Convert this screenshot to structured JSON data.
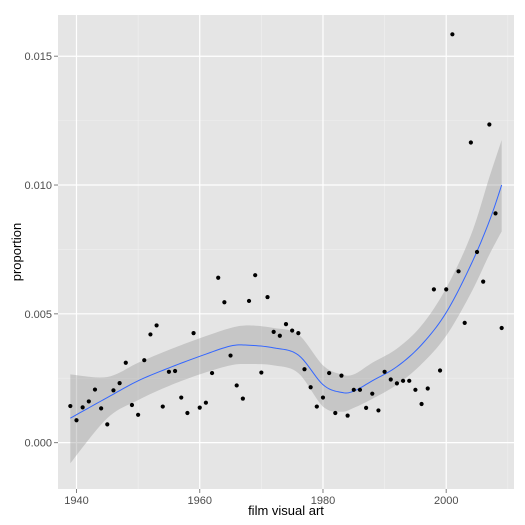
{
  "colors": {
    "panel_bg": "#E5E5E5",
    "grid_major": "#FFFFFF",
    "grid_minor": "#F0F0F0",
    "points": "#000000",
    "smooth_line": "#3366FF",
    "ribbon": "#999999",
    "tick_mark": "#7F7F7F"
  },
  "chart_data": {
    "type": "scatter",
    "xlabel": "film visual art",
    "ylabel": "proportion",
    "xlim": [
      1937,
      2011
    ],
    "ylim": [
      -0.0018,
      0.0166
    ],
    "x_ticks": [
      1940,
      1960,
      1980,
      2000
    ],
    "x_tick_labels": [
      "1940",
      "1960",
      "1980",
      "2000"
    ],
    "y_ticks": [
      0,
      0.005,
      0.01,
      0.015
    ],
    "y_tick_labels": [
      "0.000",
      "0.005",
      "0.010",
      "0.015"
    ],
    "grid": true,
    "points": [
      [
        1939,
        0.00142
      ],
      [
        1940,
        0.00087
      ],
      [
        1941,
        0.00137
      ],
      [
        1942,
        0.0016
      ],
      [
        1943,
        0.00206
      ],
      [
        1944,
        0.00133
      ],
      [
        1945,
        0.00071
      ],
      [
        1946,
        0.00203
      ],
      [
        1947,
        0.00231
      ],
      [
        1948,
        0.0031
      ],
      [
        1949,
        0.00146
      ],
      [
        1950,
        0.00108
      ],
      [
        1951,
        0.0032
      ],
      [
        1952,
        0.0042
      ],
      [
        1953,
        0.00455
      ],
      [
        1954,
        0.0014
      ],
      [
        1955,
        0.00275
      ],
      [
        1956,
        0.00278
      ],
      [
        1957,
        0.00175
      ],
      [
        1958,
        0.00115
      ],
      [
        1959,
        0.00425
      ],
      [
        1960,
        0.00136
      ],
      [
        1961,
        0.00155
      ],
      [
        1962,
        0.0027
      ],
      [
        1963,
        0.0064
      ],
      [
        1964,
        0.00545
      ],
      [
        1965,
        0.00338
      ],
      [
        1966,
        0.00222
      ],
      [
        1967,
        0.00171
      ],
      [
        1968,
        0.0055
      ],
      [
        1969,
        0.0065
      ],
      [
        1970,
        0.00272
      ],
      [
        1971,
        0.00565
      ],
      [
        1972,
        0.0043
      ],
      [
        1973,
        0.00415
      ],
      [
        1974,
        0.0046
      ],
      [
        1975,
        0.00435
      ],
      [
        1976,
        0.00425
      ],
      [
        1977,
        0.00285
      ],
      [
        1978,
        0.00215
      ],
      [
        1979,
        0.0014
      ],
      [
        1980,
        0.00175
      ],
      [
        1981,
        0.0027
      ],
      [
        1982,
        0.00115
      ],
      [
        1983,
        0.0026
      ],
      [
        1984,
        0.00105
      ],
      [
        1985,
        0.00205
      ],
      [
        1986,
        0.00205
      ],
      [
        1987,
        0.00135
      ],
      [
        1988,
        0.0019
      ],
      [
        1989,
        0.00125
      ],
      [
        1990,
        0.00275
      ],
      [
        1991,
        0.00245
      ],
      [
        1992,
        0.0023
      ],
      [
        1993,
        0.0024
      ],
      [
        1994,
        0.0024
      ],
      [
        1995,
        0.00205
      ],
      [
        1996,
        0.0015
      ],
      [
        1997,
        0.0021
      ],
      [
        1998,
        0.00595
      ],
      [
        1999,
        0.0028
      ],
      [
        2000,
        0.00595
      ],
      [
        2001,
        0.01585
      ],
      [
        2002,
        0.00665
      ],
      [
        2003,
        0.00465
      ],
      [
        2004,
        0.01165
      ],
      [
        2005,
        0.0074
      ],
      [
        2006,
        0.00625
      ],
      [
        2007,
        0.01235
      ],
      [
        2008,
        0.0089
      ],
      [
        2009,
        0.00445
      ]
    ],
    "smooth_fit": {
      "x": [
        1939,
        1945,
        1950,
        1955,
        1960,
        1965,
        1968,
        1972,
        1976,
        1980,
        1983,
        1985,
        1988,
        1992,
        1996,
        2000,
        2004,
        2007,
        2009
      ],
      "y": [
        0.00095,
        0.00175,
        0.0024,
        0.0029,
        0.00335,
        0.00375,
        0.00378,
        0.00368,
        0.0034,
        0.00225,
        0.00195,
        0.002,
        0.0024,
        0.00295,
        0.0038,
        0.00505,
        0.0069,
        0.0086,
        0.01
      ],
      "lower": [
        -0.0008,
        0.00095,
        0.00165,
        0.0022,
        0.00265,
        0.003,
        0.00305,
        0.003,
        0.0027,
        0.0014,
        0.0012,
        0.00135,
        0.0017,
        0.00225,
        0.00305,
        0.00415,
        0.0058,
        0.0073,
        0.0082
      ],
      "upper": [
        0.00265,
        0.00255,
        0.0031,
        0.0036,
        0.00405,
        0.00445,
        0.00455,
        0.00445,
        0.0042,
        0.003,
        0.00265,
        0.00265,
        0.0031,
        0.00365,
        0.00455,
        0.006,
        0.00805,
        0.0103,
        0.01175
      ]
    }
  }
}
